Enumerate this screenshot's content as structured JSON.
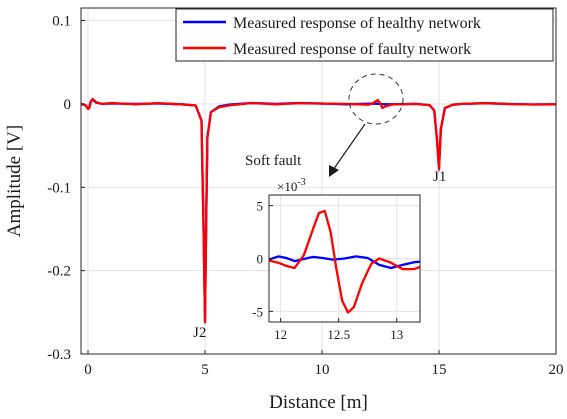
{
  "chart_data": [
    {
      "type": "line",
      "xlabel": "Distance [m]",
      "ylabel": "Amplitude [V]",
      "xlim": [
        -0.3,
        20
      ],
      "ylim": [
        -0.3,
        0.115
      ],
      "xticks": [
        0,
        5,
        10,
        15,
        20
      ],
      "yticks": [
        0.1,
        0,
        -0.1,
        -0.2,
        -0.3
      ],
      "xtick_labels": [
        "0",
        "5",
        "10",
        "15",
        "20"
      ],
      "ytick_labels": [
        "0.1",
        "0",
        "-0.1",
        "-0.2",
        "-0.3"
      ],
      "grid": true,
      "legend_position": "top-right",
      "series": [
        {
          "name": "Measured response of healthy network",
          "color": "#0000ff",
          "x": [
            -0.3,
            -0.1,
            0.0,
            0.05,
            0.12,
            0.2,
            0.35,
            0.6,
            1,
            2,
            3,
            4,
            4.6,
            4.85,
            4.93,
            5.0,
            5.05,
            5.1,
            5.25,
            5.6,
            6,
            7,
            8,
            9,
            10,
            11,
            12,
            12.3,
            12.6,
            13,
            14,
            14.6,
            14.8,
            14.92,
            15.0,
            15.08,
            15.25,
            15.6,
            16,
            17,
            18,
            19,
            20
          ],
          "y": [
            0,
            -0.002,
            -0.006,
            -0.005,
            0.003,
            0.005,
            0.0015,
            0,
            0.0005,
            0,
            0.0005,
            -0.0005,
            -0.002,
            -0.02,
            -0.14,
            -0.258,
            -0.14,
            -0.04,
            -0.01,
            -0.003,
            -0.001,
            0.001,
            0,
            0.001,
            0.0005,
            -0.0005,
            0.0002,
            0.0003,
            -0.0003,
            -0.0005,
            0,
            -0.0015,
            -0.008,
            -0.045,
            -0.076,
            -0.03,
            -0.005,
            -0.001,
            0,
            0.0008,
            0,
            -0.0008,
            -0.0005
          ]
        },
        {
          "name": "Measured response of faulty network",
          "color": "#ff0000",
          "x": [
            -0.3,
            -0.1,
            0.0,
            0.05,
            0.12,
            0.2,
            0.35,
            0.6,
            1,
            2,
            3,
            4,
            4.6,
            4.85,
            4.93,
            5.0,
            5.05,
            5.1,
            5.25,
            5.6,
            6,
            7,
            8,
            9,
            10,
            11,
            12,
            12.2,
            12.38,
            12.5,
            12.58,
            12.7,
            13,
            14,
            14.6,
            14.8,
            14.92,
            15.0,
            15.08,
            15.25,
            15.6,
            16,
            17,
            18,
            19,
            20
          ],
          "y": [
            0,
            -0.002,
            -0.006,
            -0.005,
            0.003,
            0.006,
            0.002,
            0,
            0.001,
            -0.0005,
            0.0008,
            -0.0005,
            -0.002,
            -0.02,
            -0.14,
            -0.262,
            -0.14,
            -0.04,
            -0.01,
            -0.004,
            -0.002,
            0.001,
            -0.0005,
            0.0008,
            0.0003,
            0,
            -0.001,
            0.001,
            0.0045,
            0.0,
            -0.005,
            -0.003,
            -0.0008,
            0,
            -0.0015,
            -0.008,
            -0.045,
            -0.079,
            -0.03,
            -0.005,
            -0.001,
            0,
            0.0008,
            -0.0003,
            -0.0008,
            -0.0005
          ]
        }
      ],
      "annotations": [
        {
          "text": "J2",
          "x": 5.0,
          "y": -0.258
        },
        {
          "text": "J1",
          "x": 15.0,
          "y": -0.079
        },
        {
          "text": "Soft fault"
        }
      ]
    },
    {
      "type": "line",
      "xlim": [
        11.9,
        13.2
      ],
      "ylim": [
        -6,
        6
      ],
      "y_scale_label": "×10",
      "y_scale_exponent": "-3",
      "xticks": [
        12,
        12.5,
        13
      ],
      "yticks": [
        5,
        0,
        -5
      ],
      "xtick_labels": [
        "12",
        "12.5",
        "13"
      ],
      "ytick_labels": [
        "5",
        "0",
        "-5"
      ],
      "grid": true,
      "series": [
        {
          "color": "#0000ff",
          "x": [
            11.9,
            11.98,
            12.05,
            12.12,
            12.2,
            12.28,
            12.36,
            12.45,
            12.55,
            12.65,
            12.75,
            12.85,
            12.95,
            13.05,
            13.15,
            13.2
          ],
          "y": [
            -0.1,
            0.2,
            0.05,
            -0.25,
            -0.05,
            0.15,
            0.05,
            -0.1,
            0.0,
            0.2,
            0.05,
            -0.6,
            -0.9,
            -0.6,
            -0.35,
            -0.3
          ]
        },
        {
          "color": "#ff0000",
          "x": [
            11.9,
            11.98,
            12.05,
            12.12,
            12.2,
            12.28,
            12.33,
            12.38,
            12.43,
            12.48,
            12.53,
            12.58,
            12.63,
            12.7,
            12.78,
            12.85,
            12.95,
            13.05,
            13.15,
            13.2
          ],
          "y": [
            -0.2,
            -0.4,
            -0.7,
            -0.9,
            0.3,
            2.8,
            4.3,
            4.5,
            2.5,
            -1.0,
            -4.0,
            -5.1,
            -4.6,
            -2.4,
            -0.5,
            0.0,
            -0.4,
            -1.0,
            -1.0,
            -0.8
          ]
        }
      ]
    }
  ]
}
